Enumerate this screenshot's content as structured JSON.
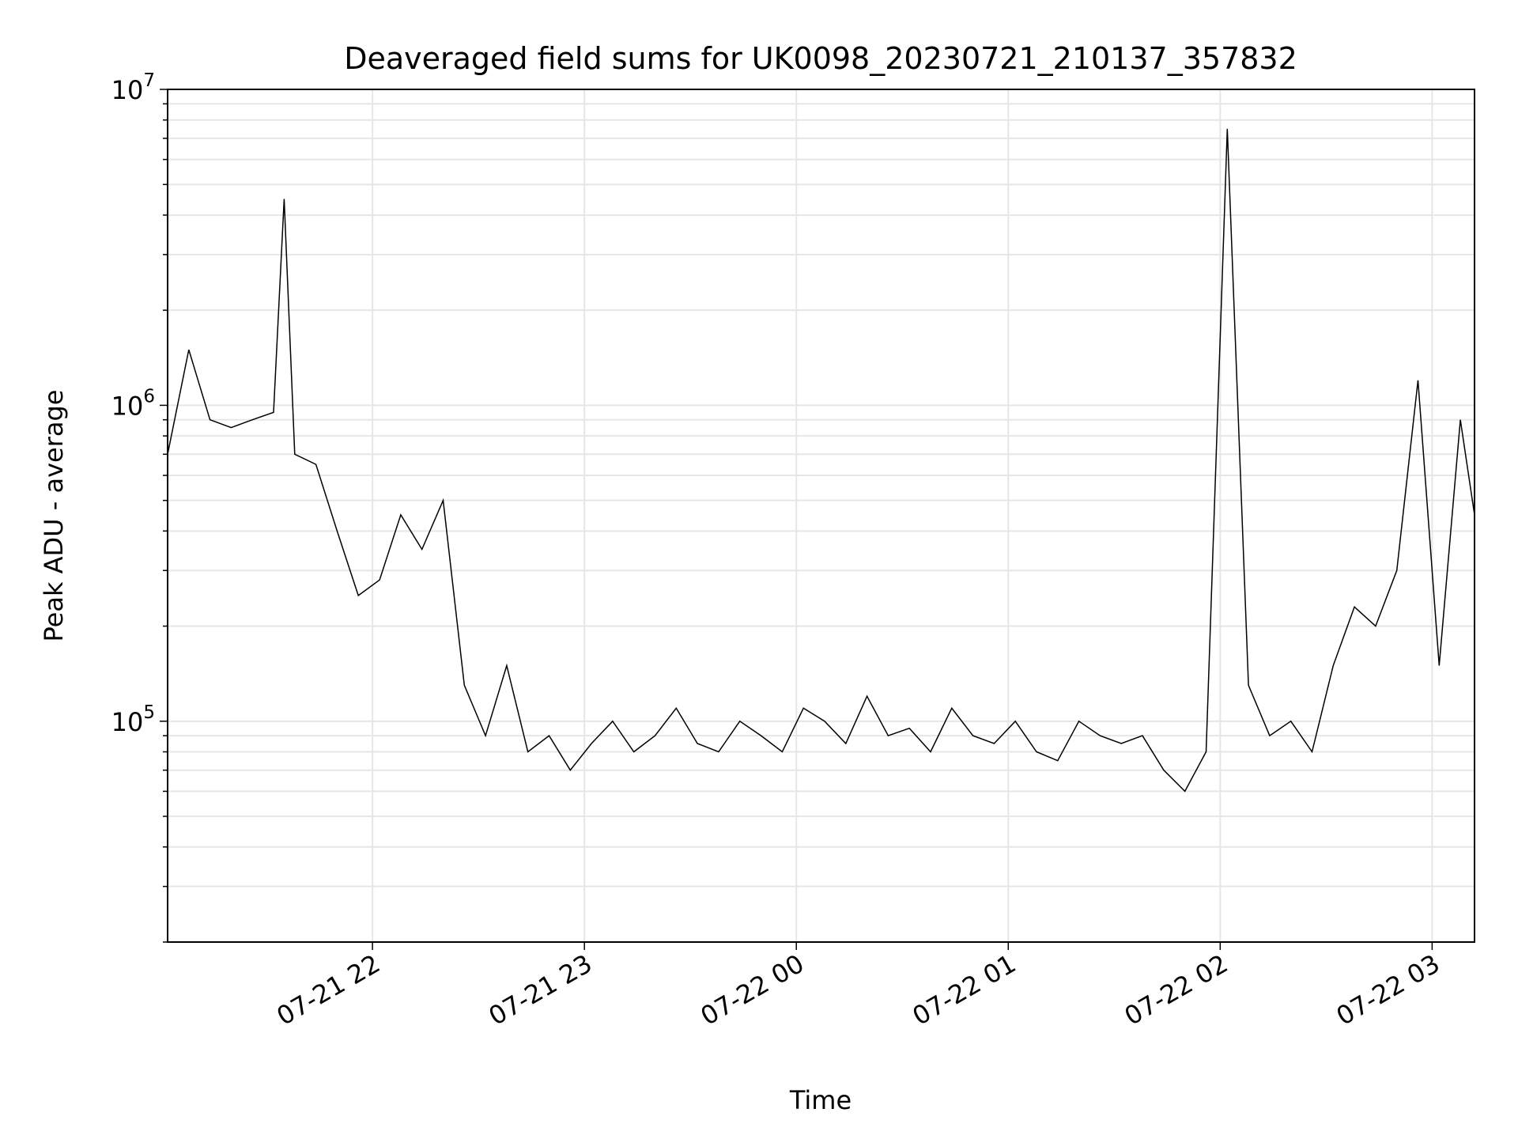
{
  "chart_data": {
    "type": "line",
    "title": "Deaveraged field sums for UK0098_20230721_210137_357832",
    "xlabel": "Time",
    "ylabel": "Peak ADU - average",
    "yscale": "log",
    "xlim": [
      "2023-07-21 21:02",
      "2023-07-22 03:12"
    ],
    "ylim": [
      20000,
      10000000
    ],
    "grid": true,
    "x_tick_labels": [
      "07-21 22",
      "07-21 23",
      "07-22 00",
      "07-22 01",
      "07-22 02",
      "07-22 03"
    ],
    "y_tick_labels": [
      {
        "base": "10",
        "exp": "5",
        "value": 100000
      },
      {
        "base": "10",
        "exp": "6",
        "value": 1000000
      },
      {
        "base": "10",
        "exp": "7",
        "value": 10000000
      }
    ],
    "series": [
      {
        "color": "#000000",
        "x": [
          "21:02",
          "21:08",
          "21:14",
          "21:20",
          "21:26",
          "21:32",
          "21:35",
          "21:38",
          "21:44",
          "21:50",
          "21:56",
          "22:02",
          "22:08",
          "22:14",
          "22:20",
          "22:26",
          "22:32",
          "22:38",
          "22:44",
          "22:50",
          "22:56",
          "23:02",
          "23:08",
          "23:14",
          "23:20",
          "23:26",
          "23:32",
          "23:38",
          "23:44",
          "23:50",
          "23:56",
          "00:02",
          "00:08",
          "00:14",
          "00:20",
          "00:26",
          "00:32",
          "00:38",
          "00:44",
          "00:50",
          "00:56",
          "01:02",
          "01:08",
          "01:14",
          "01:20",
          "01:26",
          "01:32",
          "01:38",
          "01:44",
          "01:50",
          "01:56",
          "02:02",
          "02:08",
          "02:14",
          "02:20",
          "02:26",
          "02:32",
          "02:38",
          "02:44",
          "02:50",
          "02:56",
          "03:02",
          "03:08",
          "03:12"
        ],
        "y": [
          700000,
          1500000,
          900000,
          850000,
          900000,
          950000,
          4500000,
          700000,
          650000,
          400000,
          250000,
          280000,
          450000,
          350000,
          500000,
          130000,
          90000,
          150000,
          80000,
          90000,
          70000,
          85000,
          100000,
          80000,
          90000,
          110000,
          85000,
          80000,
          100000,
          90000,
          80000,
          110000,
          100000,
          85000,
          120000,
          90000,
          95000,
          80000,
          110000,
          90000,
          85000,
          100000,
          80000,
          75000,
          100000,
          90000,
          85000,
          90000,
          70000,
          60000,
          80000,
          7500000,
          130000,
          90000,
          100000,
          80000,
          150000,
          230000,
          200000,
          300000,
          1200000,
          150000,
          900000,
          450000
        ]
      }
    ]
  }
}
